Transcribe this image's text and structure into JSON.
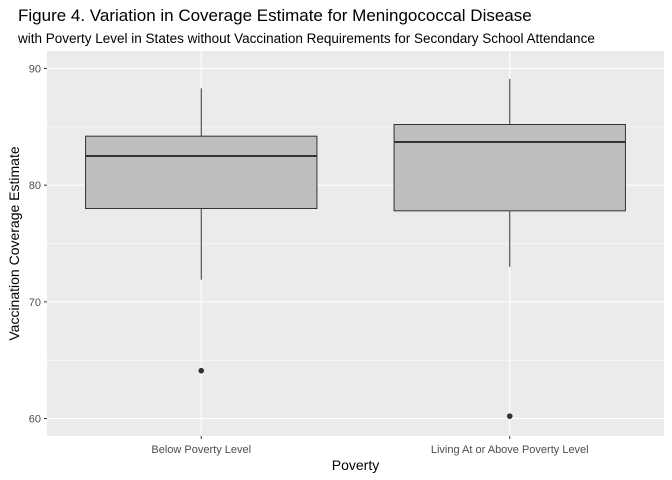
{
  "chart_data": {
    "type": "boxplot",
    "title": "Figure 4. Variation in Coverage Estimate for Meningococcal Disease",
    "subtitle": "with Poverty Level in States without Vaccination Requirements for Secondary School Attendance",
    "xlabel": "Poverty",
    "ylabel": "Vaccination Coverage Estimate",
    "categories": [
      "Below Poverty Level",
      "Living At or Above Poverty Level"
    ],
    "boxes": [
      {
        "category": "Below Poverty Level",
        "whisker_low": 71.9,
        "q1": 78.0,
        "median": 82.5,
        "q3": 84.2,
        "whisker_high": 88.3,
        "outliers": [
          64.1
        ]
      },
      {
        "category": "Living At or Above Poverty Level",
        "whisker_low": 73.0,
        "q1": 77.8,
        "median": 83.7,
        "q3": 85.2,
        "whisker_high": 89.1,
        "outliers": [
          60.2
        ]
      }
    ],
    "ylim": [
      58.5,
      91.5
    ],
    "yticks": [
      60,
      70,
      80,
      90
    ],
    "grid": true,
    "colors": {
      "panel_bg": "#ebebeb",
      "grid": "#ffffff",
      "box_fill": "#bebebe",
      "box_stroke": "#333333",
      "point": "#333333"
    }
  }
}
